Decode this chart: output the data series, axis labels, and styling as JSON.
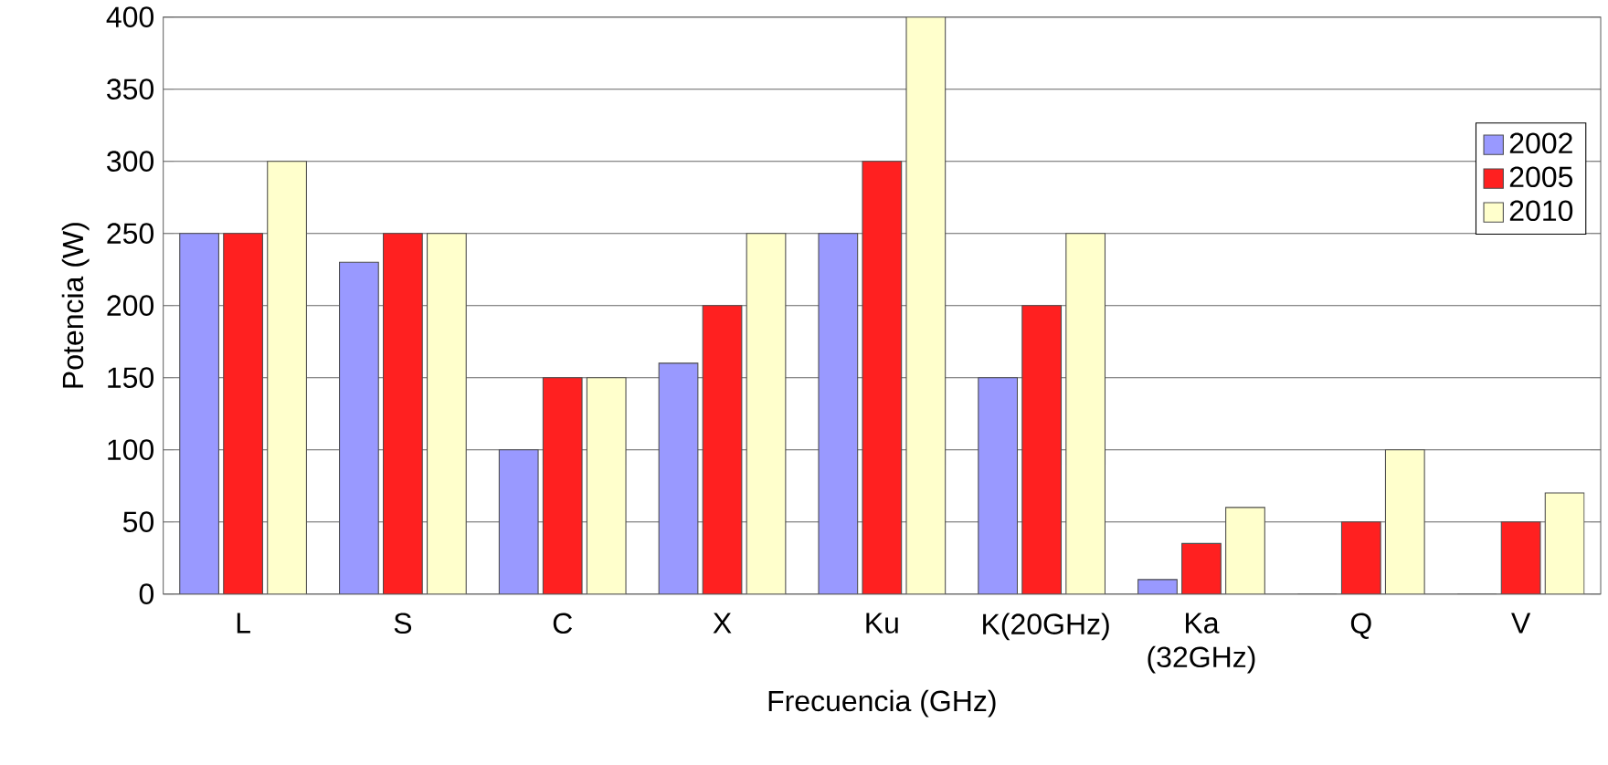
{
  "chart_data": {
    "type": "bar",
    "xlabel": "Frecuencia (GHz)",
    "ylabel": "Potencia (W)",
    "categories": [
      "L",
      "S",
      "C",
      "X",
      "Ku",
      "K(20GHz)",
      "Ka (32GHz)",
      "Q",
      "V"
    ],
    "series": [
      {
        "name": "2002",
        "color": "#9999ff",
        "values": [
          250,
          230,
          100,
          160,
          250,
          150,
          10,
          0,
          0
        ]
      },
      {
        "name": "2005",
        "color": "#ff2020",
        "values": [
          250,
          250,
          150,
          200,
          300,
          200,
          35,
          50,
          50
        ]
      },
      {
        "name": "2010",
        "color": "#ffffcc",
        "values": [
          300,
          250,
          150,
          250,
          400,
          250,
          60,
          100,
          70
        ]
      }
    ],
    "ylim": [
      0,
      400
    ],
    "yticks": [
      0,
      50,
      100,
      150,
      200,
      250,
      300,
      350,
      400
    ],
    "grid": "y",
    "legend": "right"
  }
}
